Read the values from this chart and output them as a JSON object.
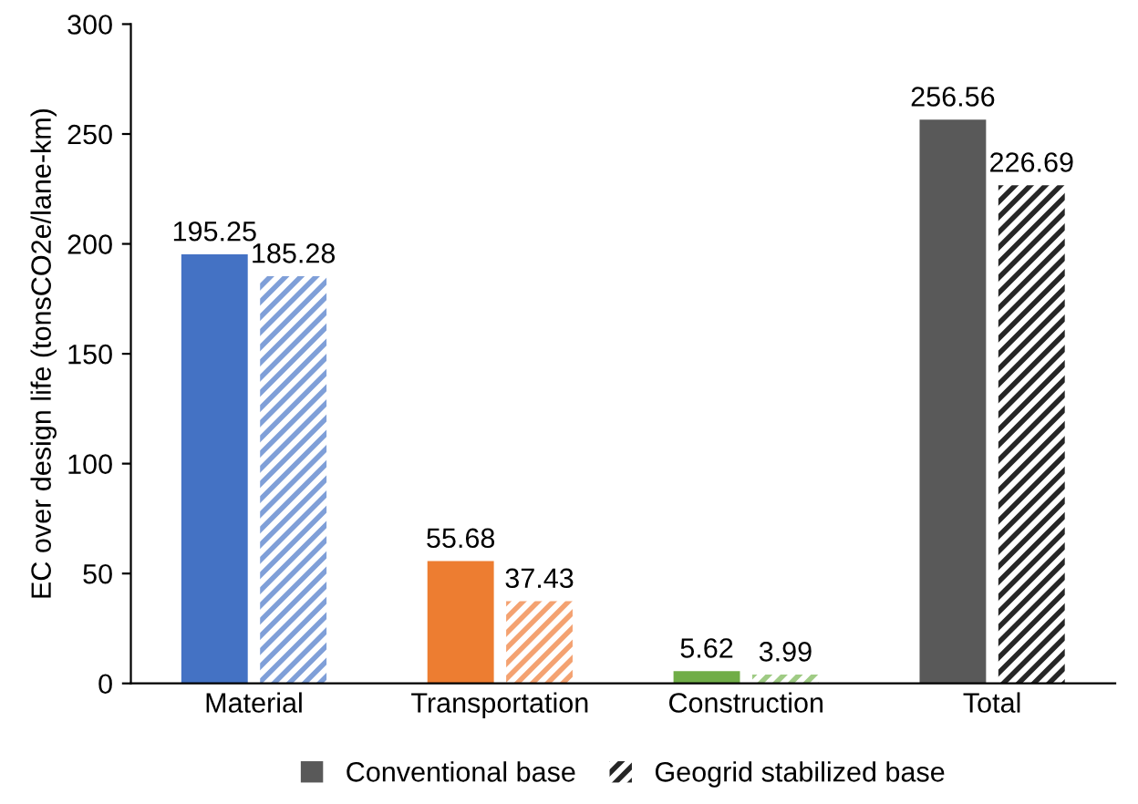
{
  "chart_data": {
    "type": "bar",
    "ylabel": "EC over design life (tonsCO2e/lane-km)",
    "categories": [
      "Material",
      "Transportation",
      "Construction",
      "Total"
    ],
    "series": [
      {
        "name": "Conventional base",
        "color": "#595959",
        "colors": [
          "#4472c4",
          "#ed7d31",
          "#70ad47",
          "#595959"
        ],
        "values": [
          195.25,
          55.68,
          5.62,
          256.56
        ]
      },
      {
        "name": "Geogrid stabilized base",
        "color": "#262626",
        "colors": [
          "#7f9fd8",
          "#f4a271",
          "#9fcb84",
          "#262626"
        ],
        "values": [
          185.28,
          37.43,
          3.99,
          226.69
        ]
      }
    ],
    "ylim": [
      0,
      300
    ],
    "yticks": [
      0,
      50,
      100,
      150,
      200,
      250,
      300
    ],
    "data_labels": true,
    "legend": "bottom",
    "grid": false
  }
}
